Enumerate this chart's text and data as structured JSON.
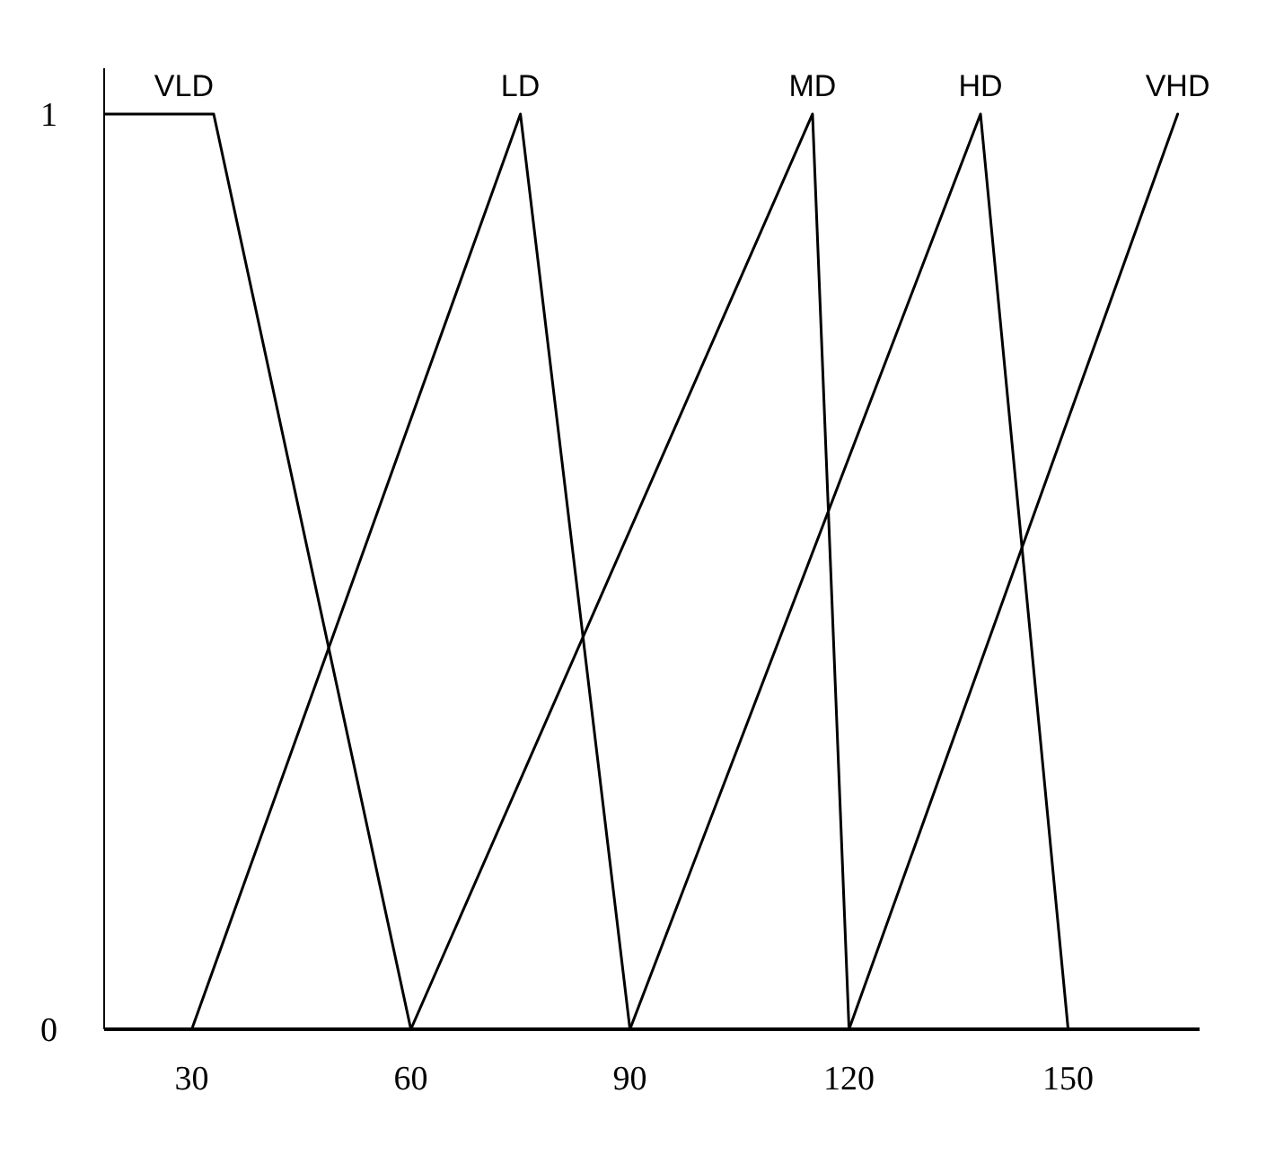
{
  "chart_data": {
    "type": "line",
    "xlim": [
      18,
      168
    ],
    "xticks": [
      30,
      60,
      90,
      120,
      150
    ],
    "ylim": [
      0,
      1.05
    ],
    "yticks": [
      0,
      1
    ],
    "grid": false,
    "legend": false,
    "marker": "none",
    "line_style": "solid",
    "series": [
      {
        "name": "VLD",
        "color": "#000000",
        "x": [
          18,
          33,
          60
        ],
        "values": [
          1,
          1,
          0
        ]
      },
      {
        "name": "LD",
        "color": "#000000",
        "x": [
          30,
          75,
          90
        ],
        "values": [
          0,
          1,
          0
        ]
      },
      {
        "name": "MD",
        "color": "#000000",
        "x": [
          60,
          115,
          120
        ],
        "values": [
          0,
          1,
          0
        ]
      },
      {
        "name": "HD",
        "color": "#000000",
        "x": [
          90,
          138,
          150
        ],
        "values": [
          0,
          1,
          0
        ]
      },
      {
        "name": "VHD",
        "color": "#000000",
        "x": [
          120,
          165
        ],
        "values": [
          0,
          1
        ]
      }
    ]
  }
}
